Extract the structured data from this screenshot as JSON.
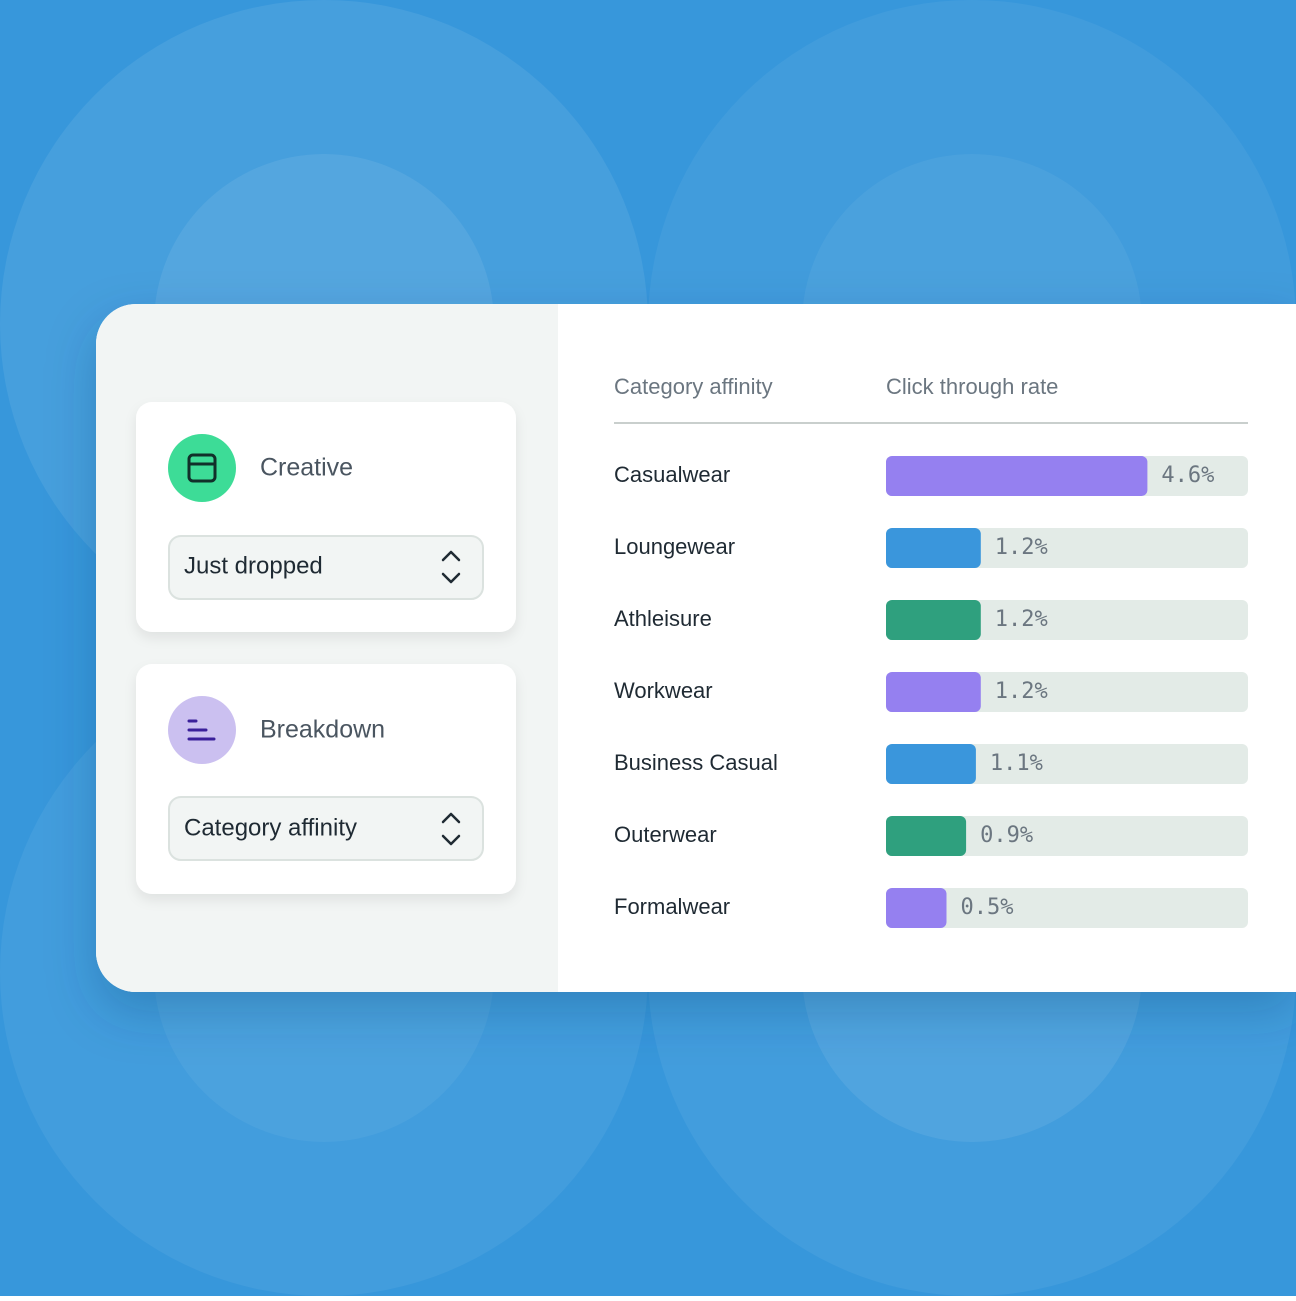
{
  "creative": {
    "label": "Creative",
    "select": "Just dropped"
  },
  "breakdown": {
    "label": "Breakdown",
    "select": "Category affinity"
  },
  "table": {
    "headers": [
      "Category affinity",
      "Click through rate"
    ],
    "rows": [
      {
        "name": "Casualwear",
        "value": 4.6,
        "value_label": "4.6%",
        "color": "#9580f0"
      },
      {
        "name": "Loungewear",
        "value": 1.2,
        "value_label": "1.2%",
        "color": "#3a96dc"
      },
      {
        "name": "Athleisure",
        "value": 1.2,
        "value_label": "1.2%",
        "color": "#2fa07e"
      },
      {
        "name": "Workwear",
        "value": 1.2,
        "value_label": "1.2%",
        "color": "#9580f0"
      },
      {
        "name": "Business Casual",
        "value": 1.1,
        "value_label": "1.1%",
        "color": "#3a96dc"
      },
      {
        "name": "Outerwear",
        "value": 0.9,
        "value_label": "0.9%",
        "color": "#2fa07e"
      },
      {
        "name": "Formalwear",
        "value": 0.5,
        "value_label": "0.5%",
        "color": "#9580f0"
      }
    ]
  }
}
